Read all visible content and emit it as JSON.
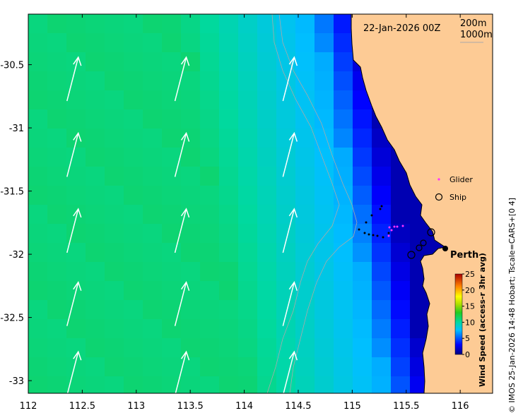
{
  "map": {
    "timestamp": "22-Jan-2026 00Z",
    "contour_labels": [
      "200m",
      "1000m"
    ],
    "city_label": "Perth",
    "credit": "© IMOS 25-Jan-2026 14:48 Hobart; Tscale=CARS+[0 4]",
    "lon_ticks": [
      "112",
      "112.5",
      "113",
      "113.5",
      "114",
      "114.5",
      "115",
      "115.5",
      "116"
    ],
    "lat_ticks": [
      "-30.5",
      "-31",
      "-31.5",
      "-32",
      "-32.5",
      "-33"
    ],
    "lon_range": [
      112,
      116.3
    ],
    "lat_range": [
      -33.1,
      -30.1
    ],
    "colors": {
      "land": "#fdcb95",
      "arrow": "#ffffff",
      "glider": "#ff33ff"
    }
  },
  "legend": {
    "glider_label": "Glider",
    "ship_label": "Ship"
  },
  "colorbar": {
    "title": "Wind Speed (access-r 3hr avg)",
    "ticks": [
      "0",
      "5",
      "10",
      "15",
      "20",
      "25"
    ],
    "min": 0,
    "max": 25
  }
}
